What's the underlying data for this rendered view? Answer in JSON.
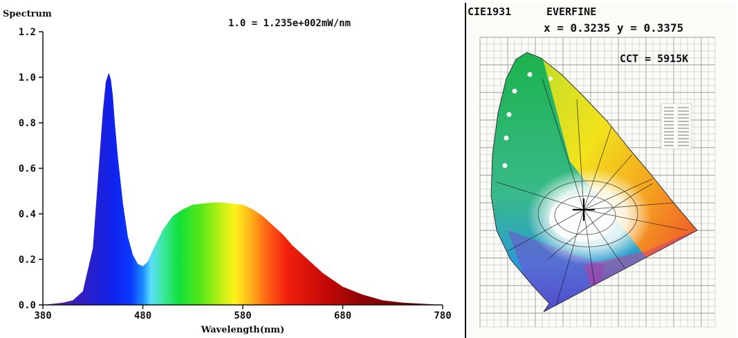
{
  "chart_data": [
    {
      "type": "area",
      "title": "Spectrum",
      "annotation": "1.0 = 1.235e+002mW/nm",
      "xlabel": "Wavelength(nm)",
      "ylabel": "Spectrum",
      "xlim": [
        380,
        780
      ],
      "ylim": [
        0,
        1.2
      ],
      "xticks": [
        "380",
        "480",
        "580",
        "680",
        "780"
      ],
      "yticks": [
        "0.0",
        "0.2",
        "0.4",
        "0.6",
        "0.8",
        "1.0",
        "1.2"
      ],
      "grid": false,
      "x": [
        380,
        400,
        410,
        420,
        430,
        435,
        440,
        443,
        446,
        448,
        450,
        452,
        455,
        460,
        465,
        470,
        475,
        480,
        485,
        490,
        500,
        510,
        520,
        530,
        540,
        550,
        560,
        570,
        580,
        590,
        600,
        610,
        620,
        630,
        640,
        650,
        660,
        670,
        680,
        700,
        720,
        740,
        760,
        780
      ],
      "y": [
        0.0,
        0.01,
        0.02,
        0.06,
        0.25,
        0.55,
        0.85,
        0.98,
        1.02,
        0.99,
        0.92,
        0.8,
        0.65,
        0.45,
        0.3,
        0.22,
        0.18,
        0.17,
        0.19,
        0.24,
        0.33,
        0.39,
        0.42,
        0.44,
        0.445,
        0.45,
        0.45,
        0.445,
        0.44,
        0.42,
        0.39,
        0.35,
        0.31,
        0.26,
        0.22,
        0.18,
        0.14,
        0.11,
        0.08,
        0.045,
        0.02,
        0.01,
        0.005,
        0.0
      ]
    },
    {
      "type": "scatter",
      "title": "CIE1931",
      "brand": "EVERFINE",
      "coordinates": "x = 0.3235 y = 0.3375",
      "cct": "CCT = 5915K",
      "x": [
        0.3235
      ],
      "y": [
        0.3375
      ]
    }
  ]
}
